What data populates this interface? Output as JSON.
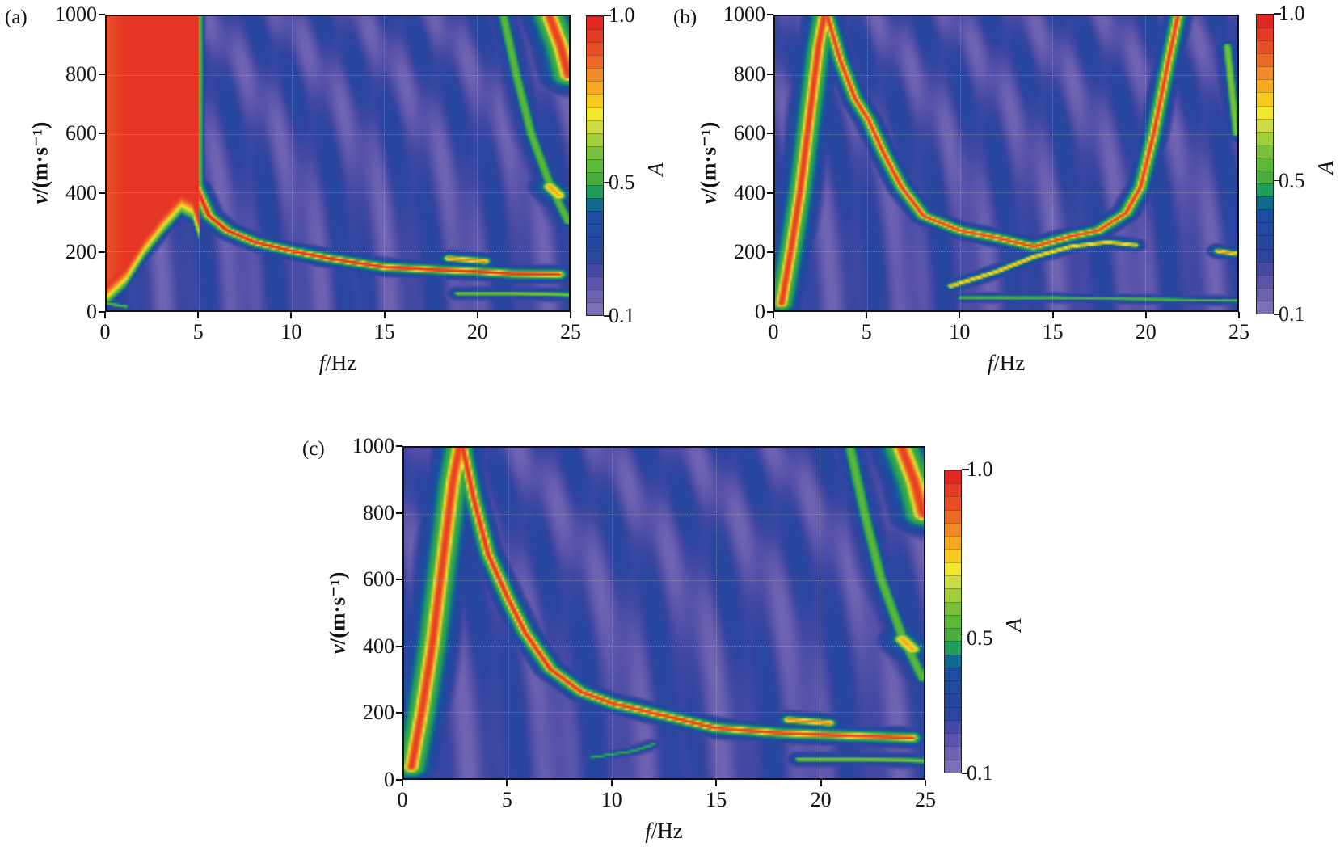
{
  "colorbar": {
    "label": "A",
    "ticks": [
      "1.0",
      "0.5",
      "0.1"
    ],
    "tick_values": [
      1.0,
      0.5,
      0.1
    ],
    "range": [
      0.1,
      1.0
    ],
    "colors": [
      "#7b6fb8",
      "#6c62b0",
      "#5a55aa",
      "#4349a4",
      "#2e45a0",
      "#27479f",
      "#224a9f",
      "#1d4da2",
      "#126a8c",
      "#1f9e5b",
      "#4aab3f",
      "#5db83a",
      "#79c03a",
      "#a1ce3b",
      "#cbdc45",
      "#f2e62e",
      "#f6c91f",
      "#f6a91f",
      "#f08a26",
      "#ec6a26",
      "#e84f26",
      "#e63a25",
      "#e22723"
    ]
  },
  "chart_data": [
    {
      "type": "heatmap",
      "panel_label": "(a)",
      "xlabel_var": "f",
      "xlabel_unit": "/Hz",
      "ylabel_var": "v",
      "ylabel_unit": "/(m·s⁻¹)",
      "xlim": [
        0,
        25
      ],
      "ylim": [
        0,
        1000
      ],
      "xticks": [
        "0",
        "5",
        "10",
        "15",
        "20",
        "25"
      ],
      "xtick_values": [
        0,
        5,
        10,
        15,
        20,
        25
      ],
      "yticks": [
        "0",
        "200",
        "400",
        "600",
        "800",
        "1000"
      ],
      "ytick_values": [
        0,
        200,
        400,
        600,
        800,
        1000
      ],
      "colorbar_label": "A",
      "grid": true,
      "blocks": [
        {
          "f": [
            0,
            5
          ],
          "lower": [
            [
              0,
              90
            ],
            [
              1,
              150
            ],
            [
              2,
              250
            ],
            [
              3,
              330
            ],
            [
              4,
              400
            ],
            [
              4.6,
              380
            ],
            [
              5,
              300
            ]
          ],
          "amplitude": 0.97
        }
      ],
      "ridges": [
        {
          "points": [
            [
              4.8,
              420
            ],
            [
              5.5,
              320
            ],
            [
              6.5,
              270
            ],
            [
              8,
              230
            ],
            [
              10,
              200
            ],
            [
              12,
              175
            ],
            [
              15,
              145
            ],
            [
              18,
              135
            ],
            [
              20,
              130
            ],
            [
              22,
              122
            ],
            [
              24.5,
              120
            ]
          ],
          "amplitude": 1.0,
          "width": 0.012
        },
        {
          "points": [
            [
              21.5,
              1000
            ],
            [
              22.2,
              800
            ],
            [
              23,
              600
            ],
            [
              24,
              430
            ],
            [
              25,
              300
            ]
          ],
          "amplitude": 0.55,
          "width": 0.02
        },
        {
          "points": [
            [
              24,
              1000
            ],
            [
              24.6,
              900
            ],
            [
              25,
              800
            ]
          ],
          "amplitude": 0.95,
          "width": 0.025
        },
        {
          "points": [
            [
              24,
              420
            ],
            [
              24.5,
              390
            ]
          ],
          "amplitude": 0.8,
          "width": 0.02
        },
        {
          "points": [
            [
              18.5,
              175
            ],
            [
              20.5,
              165
            ]
          ],
          "amplitude": 0.85,
          "width": 0.012
        },
        {
          "points": [
            [
              19,
              55
            ],
            [
              22,
              55
            ],
            [
              25,
              50
            ]
          ],
          "amplitude": 0.6,
          "width": 0.012
        },
        {
          "points": [
            [
              0,
              20
            ],
            [
              1,
              10
            ]
          ],
          "amplitude": 0.55,
          "width": 0.01
        }
      ]
    },
    {
      "type": "heatmap",
      "panel_label": "(b)",
      "xlabel_var": "f",
      "xlabel_unit": "/Hz",
      "ylabel_var": "v",
      "ylabel_unit": "/(m·s⁻¹)",
      "xlim": [
        0,
        25
      ],
      "ylim": [
        0,
        1000
      ],
      "xticks": [
        "0",
        "5",
        "10",
        "15",
        "20",
        "25"
      ],
      "xtick_values": [
        0,
        5,
        10,
        15,
        20,
        25
      ],
      "yticks": [
        "0",
        "200",
        "400",
        "600",
        "800",
        "1000"
      ],
      "ytick_values": [
        0,
        200,
        400,
        600,
        800,
        1000
      ],
      "colorbar_label": "A",
      "grid": true,
      "blocks": [],
      "ridges": [
        {
          "points": [
            [
              0.3,
              20
            ],
            [
              0.8,
              200
            ],
            [
              1.3,
              400
            ],
            [
              1.8,
              650
            ],
            [
              2.3,
              900
            ],
            [
              2.6,
              1000
            ]
          ],
          "amplitude": 0.95,
          "width": 0.018
        },
        {
          "points": [
            [
              2.8,
              1000
            ],
            [
              3.5,
              850
            ],
            [
              4.3,
              720
            ],
            [
              5,
              650
            ],
            [
              5.8,
              540
            ],
            [
              6.8,
              420
            ],
            [
              8,
              320
            ],
            [
              10,
              270
            ],
            [
              12,
              245
            ],
            [
              14,
              215
            ],
            [
              16,
              250
            ],
            [
              17.5,
              270
            ],
            [
              19,
              330
            ],
            [
              19.8,
              420
            ],
            [
              20.5,
              600
            ],
            [
              21.3,
              850
            ],
            [
              21.8,
              1000
            ]
          ],
          "amplitude": 0.95,
          "width": 0.012
        },
        {
          "points": [
            [
              9.5,
              80
            ],
            [
              12,
              130
            ],
            [
              14,
              180
            ],
            [
              16,
              215
            ],
            [
              18,
              230
            ],
            [
              19.5,
              220
            ]
          ],
          "amplitude": 0.8,
          "width": 0.01
        },
        {
          "points": [
            [
              24,
              200
            ],
            [
              25,
              190
            ]
          ],
          "amplitude": 0.85,
          "width": 0.01
        },
        {
          "points": [
            [
              10,
              40
            ],
            [
              15,
              40
            ],
            [
              20,
              35
            ],
            [
              25,
              30
            ]
          ],
          "amplitude": 0.55,
          "width": 0.01
        },
        {
          "points": [
            [
              24.5,
              900
            ],
            [
              25,
              600
            ]
          ],
          "amplitude": 0.6,
          "width": 0.015
        }
      ]
    },
    {
      "type": "heatmap",
      "panel_label": "(c)",
      "xlabel_var": "f",
      "xlabel_unit": "/Hz",
      "ylabel_var": "v",
      "ylabel_unit": "/(m·s⁻¹)",
      "xlim": [
        0,
        25
      ],
      "ylim": [
        0,
        1000
      ],
      "xticks": [
        "0",
        "5",
        "10",
        "15",
        "20",
        "25"
      ],
      "xtick_values": [
        0,
        5,
        10,
        15,
        20,
        25
      ],
      "yticks": [
        "0",
        "200",
        "400",
        "600",
        "800",
        "1000"
      ],
      "ytick_values": [
        0,
        200,
        400,
        600,
        800,
        1000
      ],
      "colorbar_label": "A",
      "grid": true,
      "blocks": [],
      "ridges": [
        {
          "points": [
            [
              0.3,
              30
            ],
            [
              0.8,
              200
            ],
            [
              1.3,
              400
            ],
            [
              1.8,
              650
            ],
            [
              2.3,
              900
            ],
            [
              2.6,
              1000
            ]
          ],
          "amplitude": 0.95,
          "width": 0.02
        },
        {
          "points": [
            [
              2.8,
              1000
            ],
            [
              3.3,
              850
            ],
            [
              4,
              680
            ],
            [
              5,
              540
            ],
            [
              5.8,
              440
            ],
            [
              7,
              330
            ],
            [
              8.5,
              260
            ],
            [
              10,
              225
            ],
            [
              12,
              195
            ],
            [
              15,
              150
            ],
            [
              18,
              135
            ],
            [
              20,
              130
            ],
            [
              22,
              125
            ],
            [
              24.5,
              120
            ]
          ],
          "amplitude": 0.97,
          "width": 0.012
        },
        {
          "points": [
            [
              21.5,
              1000
            ],
            [
              22.2,
              800
            ],
            [
              23,
              600
            ],
            [
              24,
              430
            ],
            [
              25,
              300
            ]
          ],
          "amplitude": 0.55,
          "width": 0.02
        },
        {
          "points": [
            [
              24,
              1000
            ],
            [
              24.6,
              900
            ],
            [
              25,
              800
            ]
          ],
          "amplitude": 0.95,
          "width": 0.025
        },
        {
          "points": [
            [
              24,
              420
            ],
            [
              24.5,
              390
            ]
          ],
          "amplitude": 0.8,
          "width": 0.02
        },
        {
          "points": [
            [
              18.5,
              175
            ],
            [
              20.5,
              165
            ]
          ],
          "amplitude": 0.85,
          "width": 0.012
        },
        {
          "points": [
            [
              19,
              55
            ],
            [
              22,
              55
            ],
            [
              25,
              50
            ]
          ],
          "amplitude": 0.6,
          "width": 0.012
        },
        {
          "points": [
            [
              9,
              60
            ],
            [
              11,
              80
            ],
            [
              12,
              100
            ]
          ],
          "amplitude": 0.5,
          "width": 0.01
        }
      ]
    }
  ]
}
